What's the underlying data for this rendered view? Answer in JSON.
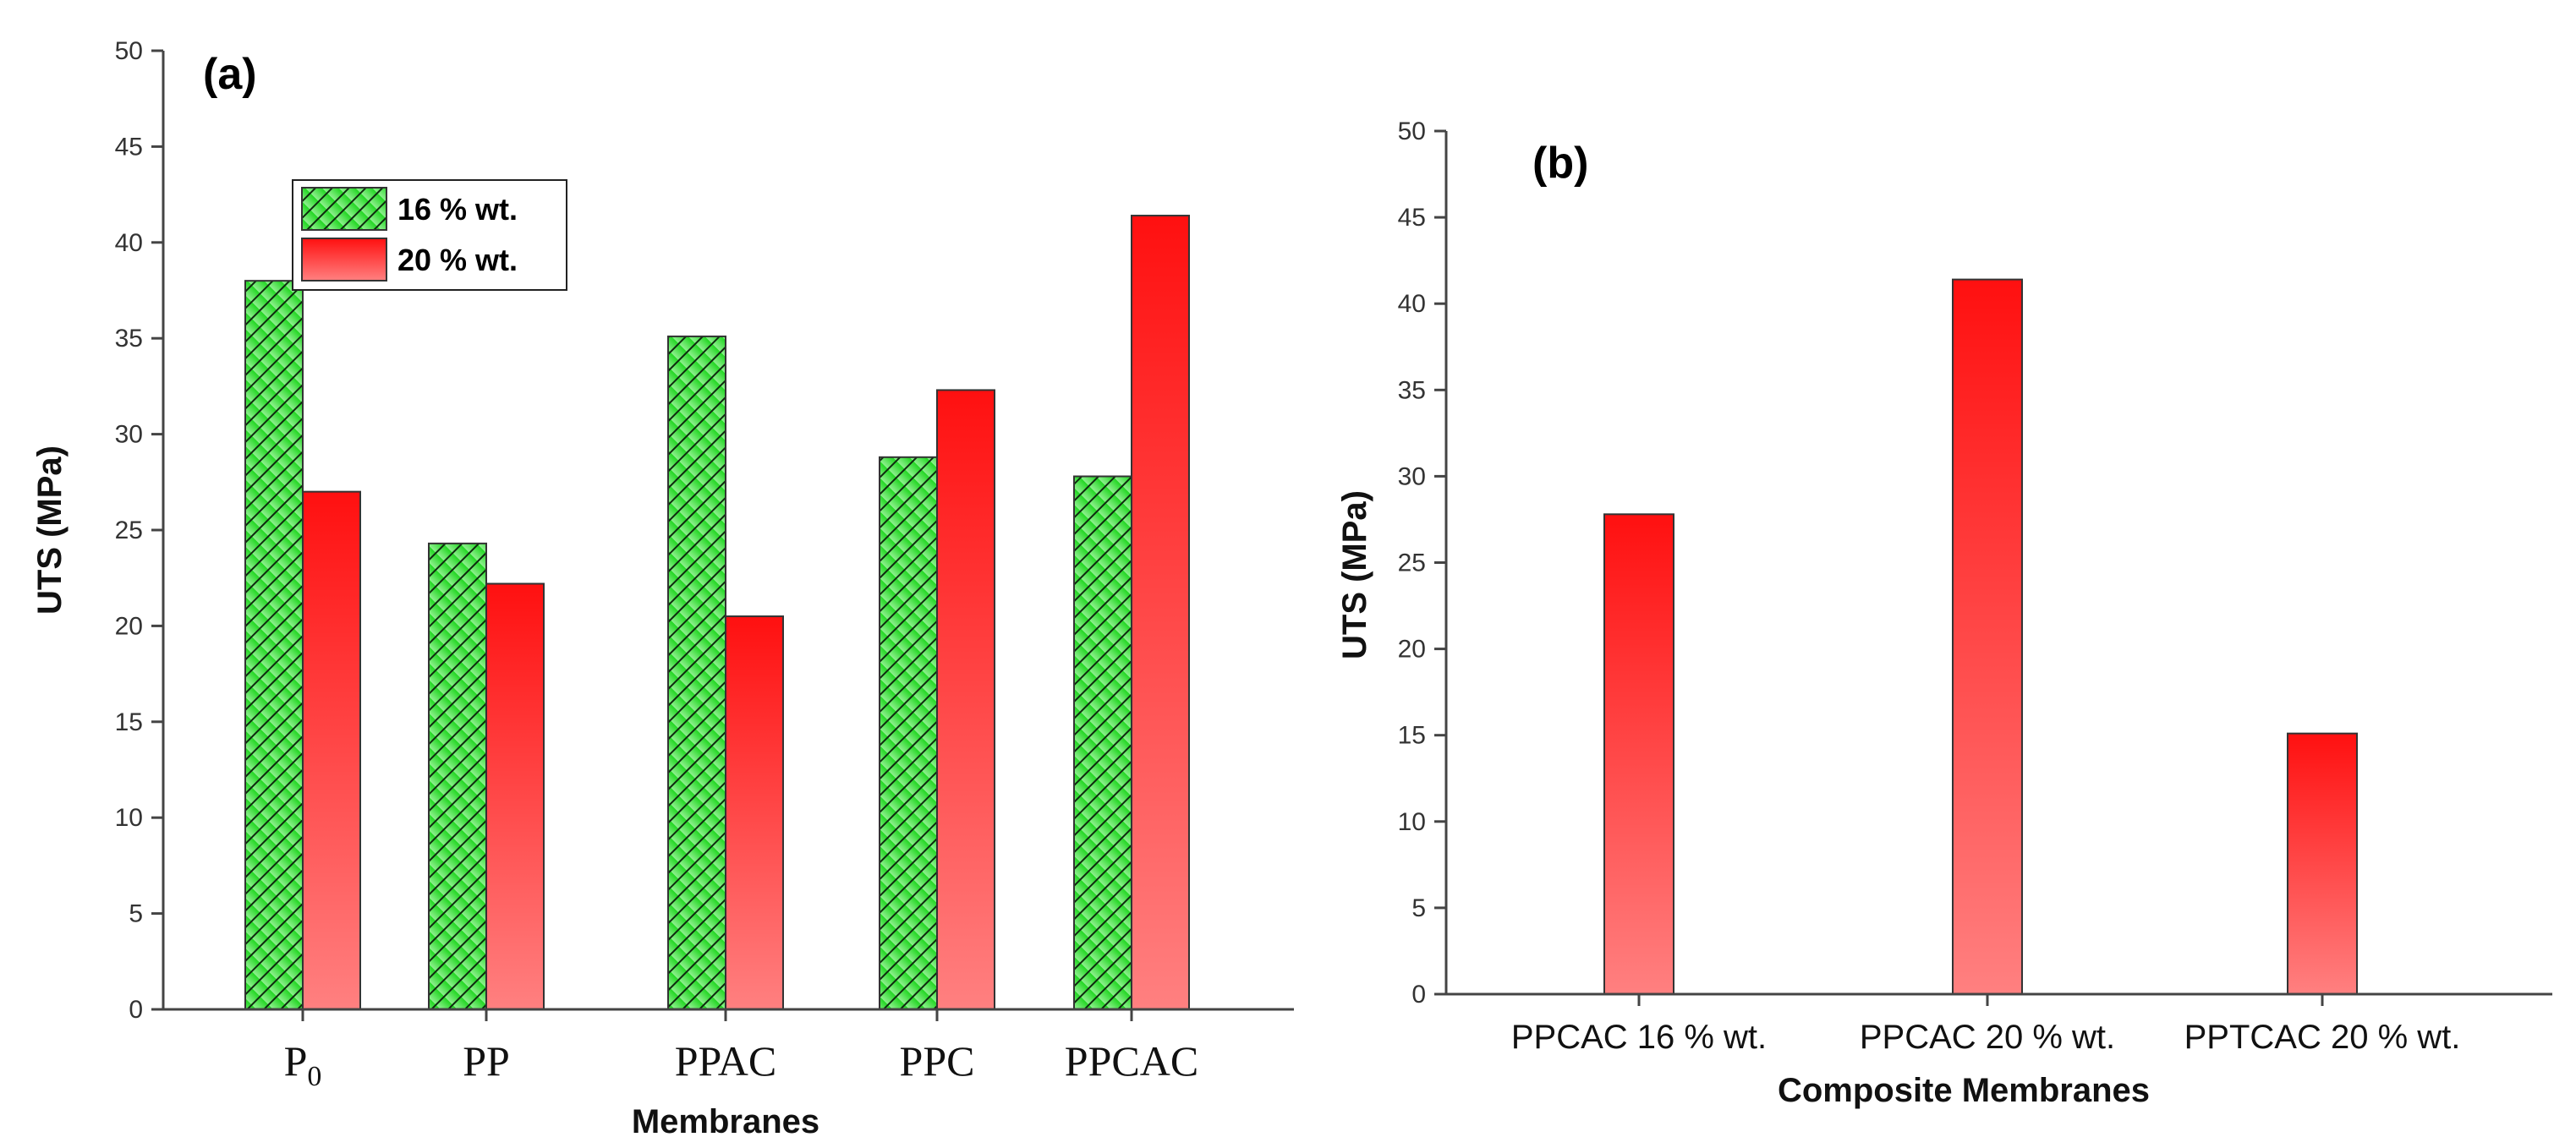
{
  "chart_data": [
    {
      "type": "bar",
      "panel_label": "(a)",
      "categories": [
        "P",
        "PP",
        "PPAC",
        "PPC",
        "PPCAC"
      ],
      "category_subscripts": [
        "0",
        "",
        "",
        "",
        ""
      ],
      "series": [
        {
          "name": "16 % wt.",
          "values": [
            38.0,
            24.3,
            35.1,
            28.8,
            27.8
          ],
          "color": "#22cc22",
          "pattern": "hatched"
        },
        {
          "name": "20 % wt.",
          "values": [
            27.0,
            22.2,
            20.5,
            32.3,
            41.4
          ],
          "color": "#ee1111",
          "pattern": "gradient"
        }
      ],
      "xlabel": "Membranes",
      "ylabel": "UTS (MPa)",
      "ylim": [
        0,
        50
      ],
      "yticks": [
        "0",
        "5",
        "10",
        "15",
        "20",
        "25",
        "30",
        "35",
        "40",
        "45",
        "50"
      ],
      "legend_position": "top-left"
    },
    {
      "type": "bar",
      "panel_label": "(b)",
      "categories": [
        "PPCAC 16 % wt.",
        "PPCAC 20 % wt.",
        "PPTCAC 20 % wt."
      ],
      "values": [
        27.8,
        41.4,
        15.1
      ],
      "color": "#ee1111",
      "xlabel": "Composite Membranes",
      "ylabel": "UTS (MPa)",
      "ylim": [
        0,
        50
      ],
      "yticks": [
        "0",
        "5",
        "10",
        "15",
        "20",
        "25",
        "30",
        "35",
        "40",
        "45",
        "50"
      ]
    }
  ]
}
